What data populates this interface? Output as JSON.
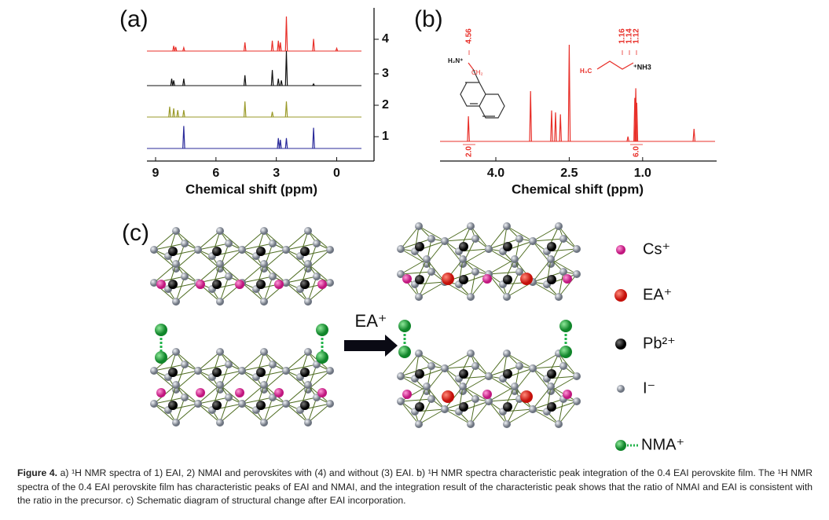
{
  "panel_a": {
    "label": "(a)",
    "xlabel": "Chemical shift (ppm)",
    "xlim": [
      9.43,
      -1.23
    ],
    "xticks": [
      9,
      6,
      3,
      0
    ],
    "traces": [
      {
        "label": "4",
        "color": "#e8302a",
        "ppm": [
          8.1,
          8.0,
          7.6,
          4.56,
          3.2,
          2.9,
          2.8,
          2.5,
          1.15,
          0
        ],
        "intensity": [
          0.15,
          0.12,
          0.1,
          0.25,
          0.3,
          0.3,
          0.25,
          1.0,
          0.35,
          0.08
        ]
      },
      {
        "label": "3",
        "color": "#111111",
        "ppm": [
          8.2,
          8.1,
          7.6,
          4.56,
          3.2,
          2.9,
          2.75,
          2.5,
          1.15
        ],
        "intensity": [
          0.2,
          0.15,
          0.2,
          0.3,
          0.45,
          0.2,
          0.15,
          1.0,
          0.05
        ]
      },
      {
        "label": "2",
        "color": "#9a9a2a",
        "ppm": [
          8.3,
          8.1,
          7.9,
          7.6,
          4.56,
          3.2,
          2.5
        ],
        "intensity": [
          0.3,
          0.25,
          0.2,
          0.2,
          0.45,
          0.15,
          0.45
        ]
      },
      {
        "label": "1",
        "color": "#2a2a9a",
        "ppm": [
          7.6,
          2.9,
          2.8,
          2.5,
          1.15
        ],
        "intensity": [
          0.65,
          0.3,
          0.25,
          0.3,
          0.6
        ]
      }
    ]
  },
  "panel_b": {
    "label": "(b)",
    "xlabel": "Chemical shift (ppm)",
    "xlim": [
      5.14,
      -0.48
    ],
    "xticks": [
      {
        "value": 4,
        "label": "4.0"
      },
      2.5,
      {
        "value": 1,
        "label": "1.0"
      }
    ],
    "color": "#e8302a",
    "ppm": [
      4.56,
      3.29,
      2.86,
      2.78,
      2.68,
      2.5,
      1.3,
      1.16,
      1.14,
      1.12,
      -0.05
    ],
    "intensity": [
      0.26,
      0.52,
      0.32,
      0.3,
      0.28,
      1.0,
      0.05,
      0.45,
      0.55,
      0.4,
      0.13
    ],
    "peak_labels": [
      "4.56",
      "1.16",
      "1.14",
      "1.12"
    ],
    "integrals": [
      "2.0",
      "6.0"
    ],
    "molecule_labels": [
      "H₂N⁺",
      "CH₂",
      "H₃C",
      "⁺NH3"
    ]
  },
  "panel_c": {
    "label": "(c)",
    "arrow_label": "EA⁺",
    "legend": [
      "Cs⁺",
      "EA⁺",
      "Pb²⁺",
      "I⁻",
      "NMA⁺"
    ]
  },
  "caption": {
    "label": "Figure 4.",
    "text": " a) ¹H NMR spectra of 1) EAI, 2) NMAI and perovskites with (4) and without (3) EAI. b) ¹H NMR spectra characteristic peak integration of the 0.4 EAI perovskite film. The ¹H NMR spectra of the 0.4 EAI perovskite film has characteristic peaks of EAI and NMAI, and the integration result of the characteristic peak shows that the ratio of NMAI and EAI is consistent with the ratio in the precursor. c) Schematic diagram of structural change after EAI incorporation."
  }
}
